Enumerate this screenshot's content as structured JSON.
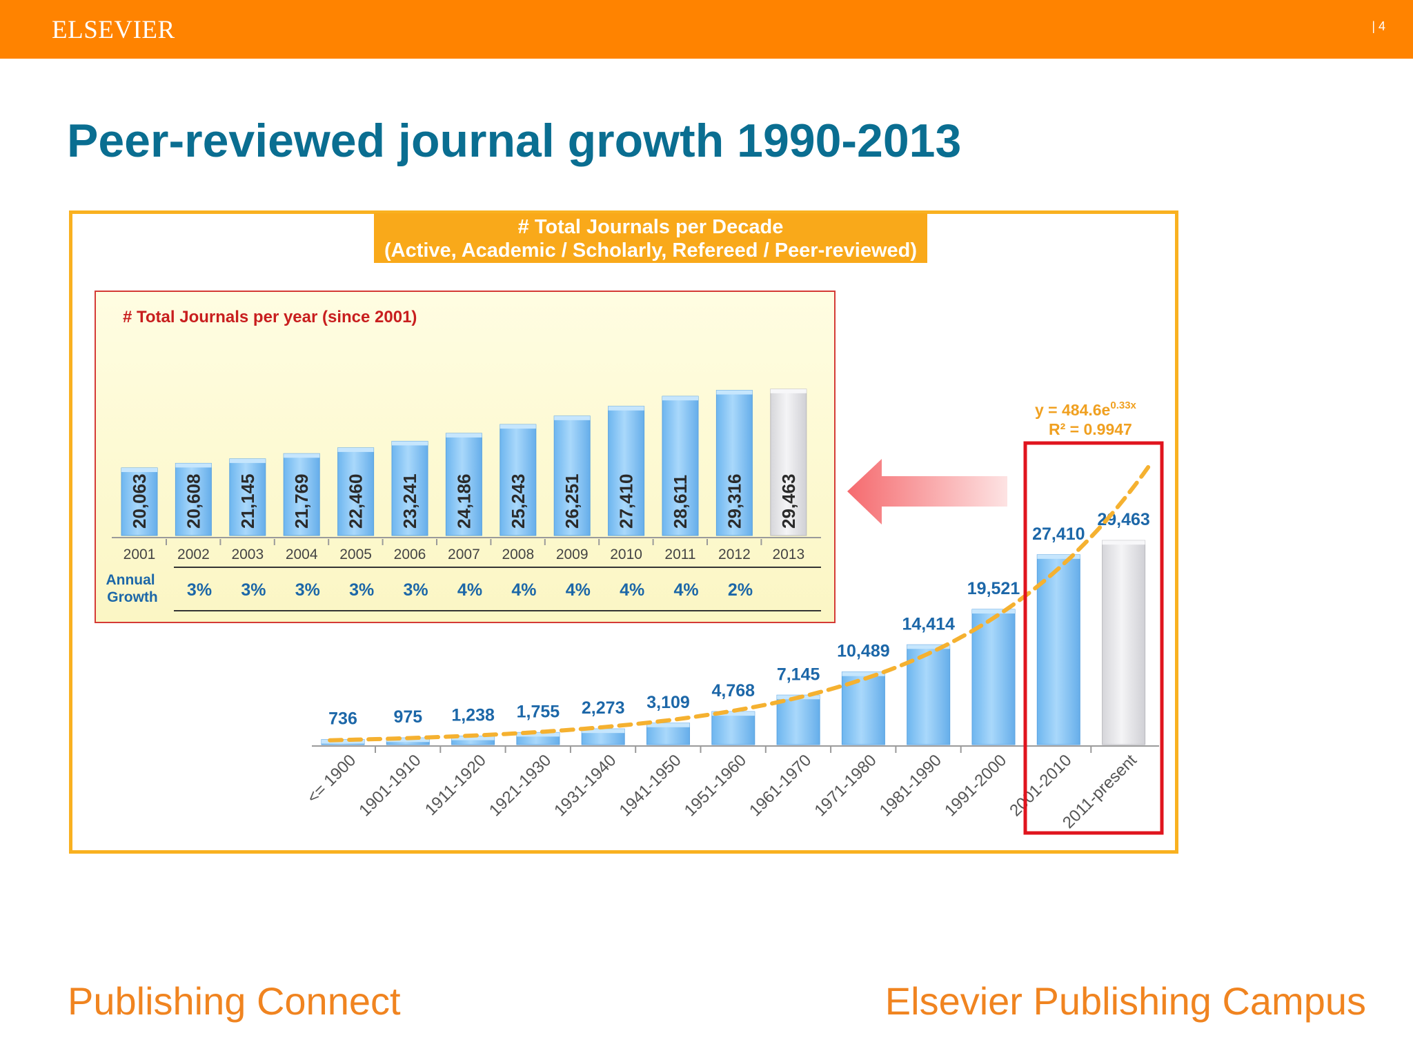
{
  "header": {
    "brand": "ELSEVIER",
    "page_number": "| 4"
  },
  "slide_title": "Peer-reviewed journal growth 1990-2013",
  "footer": {
    "left": "Publishing Connect",
    "right": "Elsevier Publishing Campus"
  },
  "colors": {
    "orange": "#ff8300",
    "title_blue": "#0a6e91",
    "bar_blue": "#8cc8f5",
    "bar_gray": "#e6e6ea",
    "trend": "#f5b130",
    "highlight": "#e0141e",
    "label_blue": "#1c67a8"
  },
  "chart_data": [
    {
      "type": "bar",
      "title": "# Total Journals per Decade",
      "subtitle": "(Active, Academic / Scholarly, Refereed / Peer-reviewed)",
      "categories": [
        "<= 1900",
        "1901-1910",
        "1911-1920",
        "1921-1930",
        "1931-1940",
        "1941-1950",
        "1951-1960",
        "1961-1970",
        "1971-1980",
        "1981-1990",
        "1991-2000",
        "2001-2010",
        "2011-present"
      ],
      "values": [
        736,
        975,
        1238,
        1755,
        2273,
        3109,
        4768,
        7145,
        10489,
        14414,
        19521,
        27410,
        29463
      ],
      "value_labels": [
        "736",
        "975",
        "1,238",
        "1,755",
        "2,273",
        "3,109",
        "4,768",
        "7,145",
        "10,489",
        "14,414",
        "19,521",
        "27,410",
        "29,463"
      ],
      "ylim": [
        0,
        40000
      ],
      "grid": false,
      "highlight_categories": [
        "2001-2010",
        "2011-present"
      ],
      "gray_categories": [
        "2011-present"
      ],
      "trendline": {
        "type": "exponential",
        "equation": "y = 484.6e",
        "exponent": "0.33x",
        "r2": "R² = 0.9947"
      }
    },
    {
      "type": "bar",
      "title": "# Total Journals per year (since 2001)",
      "categories": [
        "2001",
        "2002",
        "2003",
        "2004",
        "2005",
        "2006",
        "2007",
        "2008",
        "2009",
        "2010",
        "2011",
        "2012",
        "2013"
      ],
      "values": [
        20063,
        20608,
        21145,
        21769,
        22460,
        23241,
        24186,
        25243,
        26251,
        27410,
        28611,
        29316,
        29463
      ],
      "value_labels": [
        "20,063",
        "20,608",
        "21,145",
        "21,769",
        "22,460",
        "23,241",
        "24,186",
        "25,243",
        "26,251",
        "27,410",
        "28,611",
        "29,316",
        "29,463"
      ],
      "ylim": [
        12000,
        30000
      ],
      "grid": false,
      "gray_categories": [
        "2013"
      ],
      "growth_label": [
        "Annual",
        "Growth"
      ],
      "annual_growth": [
        "3%",
        "3%",
        "3%",
        "3%",
        "3%",
        "4%",
        "4%",
        "4%",
        "4%",
        "4%",
        "2%"
      ]
    }
  ]
}
